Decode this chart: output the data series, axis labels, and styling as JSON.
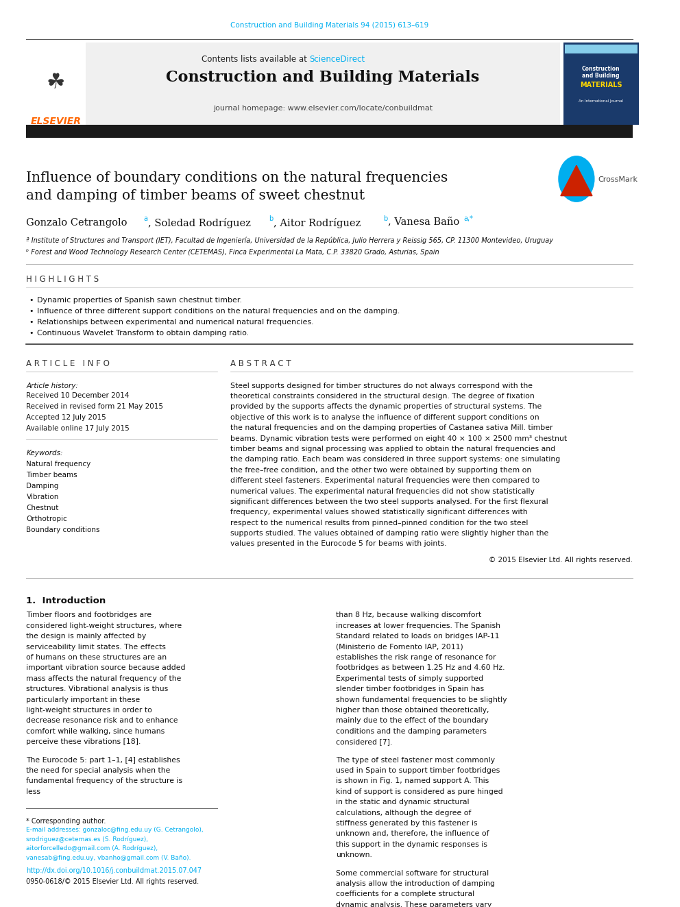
{
  "page_width": 9.92,
  "page_height": 13.23,
  "bg_color": "#ffffff",
  "journal_ref": "Construction and Building Materials 94 (2015) 613–619",
  "journal_ref_color": "#00AEEF",
  "header_bg": "#f0f0f0",
  "header_text": "Contents lists available at",
  "sciencedirect_text": "ScienceDirect",
  "sciencedirect_color": "#00AEEF",
  "journal_title": "Construction and Building Materials",
  "journal_homepage": "journal homepage: www.elsevier.com/locate/conbuildmat",
  "elsevier_color": "#FF6600",
  "thick_bar_color": "#1a1a1a",
  "paper_title_line1": "Influence of boundary conditions on the natural frequencies",
  "paper_title_line2": "and damping of timber beams of sweet chestnut",
  "affil_a": "ª Institute of Structures and Transport (IET), Facultad de Ingeniería, Universidad de la República, Julio Herrera y Reissig 565, CP. 11300 Montevideo, Uruguay",
  "affil_b": "ᵇ Forest and Wood Technology Research Center (CETEMAS), Finca Experimental La Mata, C.P. 33820 Grado, Asturias, Spain",
  "highlights_title": "H I G H L I G H T S",
  "highlight1": "Dynamic properties of Spanish sawn chestnut timber.",
  "highlight2": "Influence of three different support conditions on the natural frequencies and on the damping.",
  "highlight3": "Relationships between experimental and numerical natural frequencies.",
  "highlight4": "Continuous Wavelet Transform to obtain damping ratio.",
  "article_info_title": "A R T I C L E   I N F O",
  "abstract_title": "A B S T R A C T",
  "article_history_label": "Article history:",
  "received": "Received 10 December 2014",
  "revised": "Received in revised form 21 May 2015",
  "accepted": "Accepted 12 July 2015",
  "online": "Available online 17 July 2015",
  "keywords_label": "Keywords:",
  "kw1": "Natural frequency",
  "kw2": "Timber beams",
  "kw3": "Damping",
  "kw4": "Vibration",
  "kw5": "Chestnut",
  "kw6": "Orthotropic",
  "kw7": "Boundary conditions",
  "abstract_text": "Steel supports designed for timber structures do not always correspond with the theoretical constraints considered in the structural design. The degree of fixation provided by the supports affects the dynamic properties of structural systems. The objective of this work is to analyse the influence of different support conditions on the natural frequencies and on the damping properties of Castanea sativa Mill. timber beams. Dynamic vibration tests were performed on eight 40 × 100 × 2500 mm³ chestnut timber beams and signal processing was applied to obtain the natural frequencies and the damping ratio. Each beam was considered in three support systems: one simulating the free–free condition, and the other two were obtained by supporting them on different steel fasteners. Experimental natural frequencies were then compared to numerical values. The experimental natural frequencies did not show statistically significant differences between the two steel supports analysed. For the first flexural frequency, experimental values showed statistically significant differences with respect to the numerical results from pinned–pinned condition for the two steel supports studied. The values obtained of damping ratio were slightly higher than the values presented in the Eurocode 5 for beams with joints.",
  "copyright": "© 2015 Elsevier Ltd. All rights reserved.",
  "section1_title": "1.  Introduction",
  "intro_para1": "Timber floors and footbridges are considered light-weight structures, where the design is mainly affected by serviceability limit states. The effects of humans on these structures are an important vibration source because added mass affects the natural frequency of the structures. Vibrational analysis is thus particularly important in these light-weight structures in order to decrease resonance risk and to enhance comfort while walking, since humans perceive these vibrations [18].",
  "intro_para2": "The Eurocode 5: part 1–1, [4] establishes the need for special analysis when the fundamental frequency of the structure is less",
  "intro_right1": "than 8 Hz, because walking discomfort increases at lower frequencies. The Spanish Standard related to loads on bridges IAP-11 (Ministerio de Fomento IAP, 2011) establishes the risk range of resonance for footbridges as between 1.25 Hz and 4.60 Hz. Experimental tests of simply supported slender timber footbridges in Spain has shown fundamental frequencies to be slightly higher than those obtained theoretically, mainly due to the effect of the boundary conditions and the damping parameters considered [7].",
  "intro_right2": "The type of steel fastener most commonly used in Spain to support timber footbridges is shown in Fig. 1, named support A. This kind of support is considered as pure hinged in the static and dynamic structural calculations, although the degree of stiffness generated by this fastener is unknown and, therefore, the influence of this support in the dynamic responses is unknown.",
  "intro_right3": "Some commercial software for structural analysis allow the introduction of damping coefficients for a complete structural dynamic analysis. These parameters vary depending on material",
  "footnote_star": "* Corresponding author.",
  "footnote_emails": "E-mail addresses: gonzaloc@fing.edu.uy (G. Cetrangolo), srodriguez@cetemas.es (S. Rodríguez), aitorforcelledo@gmail.com (A. Rodríguez), vanesab@fing.edu.uy, vbanho@gmail.com (V. Baño).",
  "doi_text": "http://dx.doi.org/10.1016/j.conbuildmat.2015.07.047",
  "issn_text": "0950-0618/© 2015 Elsevier Ltd. All rights reserved.",
  "link_color": "#00AEEF"
}
